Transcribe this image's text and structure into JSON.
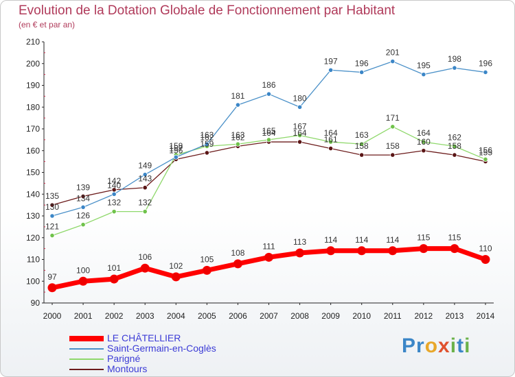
{
  "title": "Evolution de la Dotation Globale de Fonctionnement par Habitant",
  "subtitle": "(en € et par an)",
  "logo": {
    "text": "Proxiti",
    "letters": [
      {
        "ch": "P",
        "color": "#3b86c7"
      },
      {
        "ch": "r",
        "color": "#3b86c7"
      },
      {
        "ch": "o",
        "color": "#e8a72a"
      },
      {
        "ch": "x",
        "color": "#e0522e"
      },
      {
        "ch": "i",
        "color": "#6bb24a"
      },
      {
        "ch": "t",
        "color": "#3b86c7"
      },
      {
        "ch": "i",
        "color": "#6bb24a"
      }
    ]
  },
  "legend": {
    "items": [
      {
        "label": "LE CHÂTELLIER",
        "color": "#ff0000"
      },
      {
        "label": "Saint-Germain-en-Coglès",
        "color": "#4a90c8"
      },
      {
        "label": "Parigné",
        "color": "#8ed86a"
      },
      {
        "label": "Montours",
        "color": "#6b1a1a"
      }
    ]
  },
  "chart_data": {
    "type": "line",
    "title": "Evolution de la Dotation Globale de Fonctionnement par Habitant",
    "subtitle": "(en € et par an)",
    "x": [
      2000,
      2001,
      2002,
      2003,
      2004,
      2005,
      2006,
      2007,
      2008,
      2009,
      2010,
      2011,
      2012,
      2013,
      2014
    ],
    "ylim": [
      90,
      210
    ],
    "yticks": [
      90,
      100,
      110,
      120,
      130,
      140,
      150,
      160,
      170,
      180,
      190,
      200,
      210
    ],
    "grid": false,
    "legend_position": "bottom-left",
    "series": [
      {
        "name": "Montours",
        "color": "#6b1a1a",
        "point_color": "#5a1515",
        "values": [
          135,
          139,
          142,
          143,
          156,
          159,
          162,
          164,
          164,
          161,
          158,
          158,
          160,
          158,
          155
        ]
      },
      {
        "name": "Parigné",
        "color": "#8ed86a",
        "point_color": "#6fc24a",
        "values": [
          121,
          126,
          132,
          132,
          158,
          162,
          163,
          165,
          167,
          164,
          163,
          171,
          164,
          162,
          156
        ]
      },
      {
        "name": "Saint-Germain-en-Coglès",
        "color": "#4a90c8",
        "point_color": "#3b86c7",
        "values": [
          130,
          134,
          140,
          149,
          157,
          163,
          181,
          186,
          180,
          197,
          196,
          201,
          195,
          198,
          196
        ]
      },
      {
        "name": "LE CHÂTELLIER",
        "color": "#ff0000",
        "point_color": "#ee0000",
        "values": [
          97,
          100,
          101,
          106,
          102,
          105,
          108,
          111,
          113,
          114,
          114,
          114,
          115,
          115,
          110
        ]
      }
    ]
  }
}
